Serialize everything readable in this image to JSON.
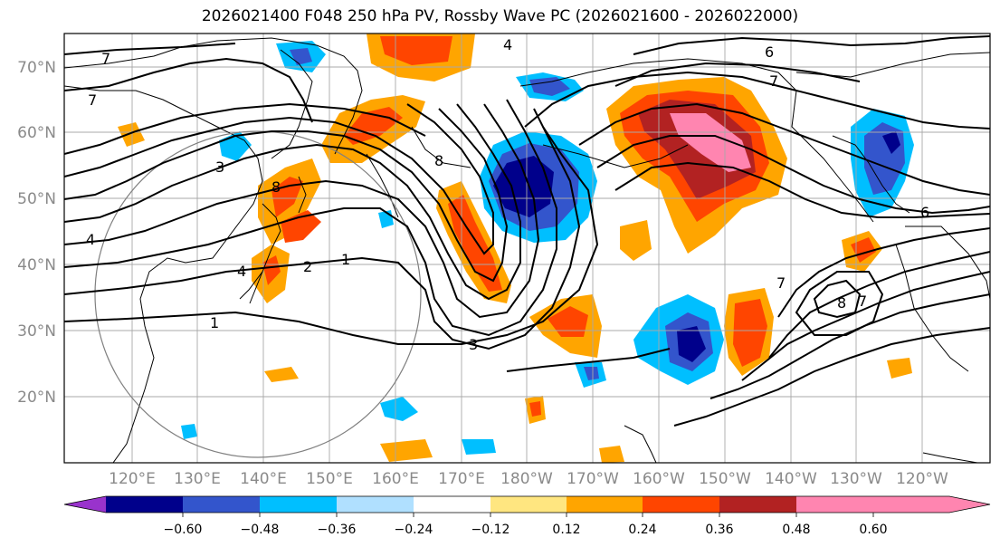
{
  "title": "2026021400 F048 250 hPa PV, Rossby Wave PC (2026021600 - 2026022000)",
  "lat_labels": [
    "70°N",
    "60°N",
    "50°N",
    "40°N",
    "30°N",
    "20°N"
  ],
  "lon_labels": [
    "120°E",
    "130°E",
    "140°E",
    "150°E",
    "160°E",
    "170°E",
    "180°W",
    "170°W",
    "160°W",
    "150°W",
    "140°W",
    "130°W",
    "120°W"
  ],
  "contour_labels": [
    "7",
    "7",
    "4",
    "6",
    "7",
    "3",
    "4",
    "8",
    "4",
    "2",
    "1",
    "1",
    "3",
    "8",
    "7",
    "8",
    "7",
    "6"
  ],
  "colorbar": {
    "labels": [
      "−0.60",
      "−0.48",
      "−0.36",
      "−0.24",
      "−0.12",
      "0.12",
      "0.24",
      "0.36",
      "0.48",
      "0.60"
    ],
    "colors": [
      "#9933cc",
      "#00008b",
      "#3355cc",
      "#00bfff",
      "#b0e0ff",
      "#ffffff",
      "#ffe680",
      "#ffa500",
      "#ff4500",
      "#b22222",
      "#ff85b0"
    ]
  }
}
